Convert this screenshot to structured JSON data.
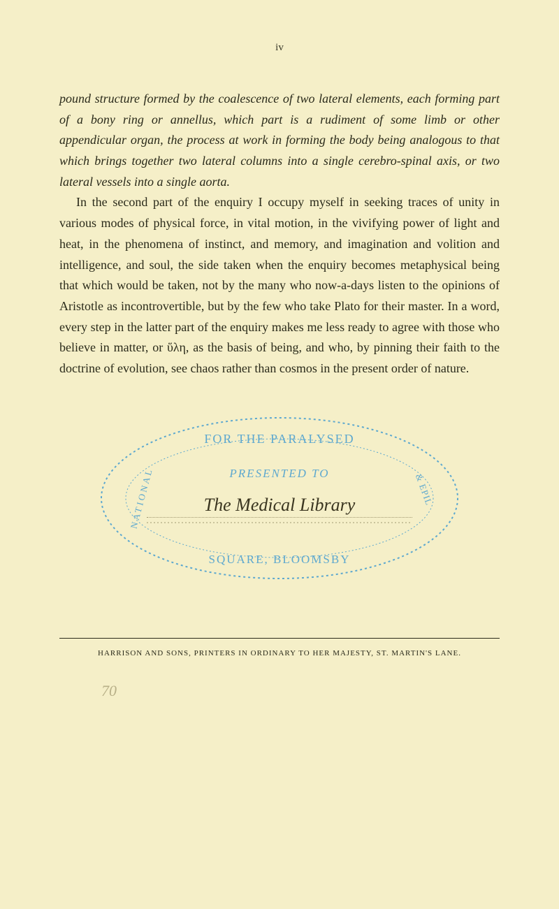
{
  "page": {
    "number": "iv",
    "paragraphs": [
      {
        "html": "<span class=\"italic\">pound structure formed by the coalescence of two lateral elements, each forming part of a bony ring or annellus, which part is a rudiment of some limb or other appendicular organ, the process at work in forming the body being analogous to that which brings together two lateral columns into a single cerebro-spinal axis, or two lateral vessels into a single aorta.</span>",
        "indent": false
      },
      {
        "html": "In the second part of the enquiry I occupy myself in seeking traces of unity in various modes of physical force, in vital motion, in the vivifying power of light and heat, in the phenomena of instinct, and memory, and imagination and volition and intelligence, and soul, the side taken when the enquiry becomes metaphysical being that which would be taken, not by the many who now-a-days listen to the opinions of Aristotle as incontrovertible, but by the few who take Plato for their master. In a word, every step in the latter part of the enquiry makes me less ready to agree with those who believe in matter, or ὕλη, as the basis of being, and who, by pinning their faith to the doctrine of evolution, see chaos rather than cosmos in the present order of nature.",
        "indent": true
      }
    ]
  },
  "stamp": {
    "top_arc": "FOR THE PARALYSED",
    "presented": "PRESENTED TO",
    "handwriting": "The Medical Library",
    "bottom_arc": "SQUARE, BLOOMSBY",
    "left_side": "NATIONAL",
    "right_side": "& EPIL",
    "oval_color": "#5da8cf",
    "dotted_color": "#a09870"
  },
  "footer": {
    "text": "HARRISON AND SONS, PRINTERS IN ORDINARY TO HER MAJESTY, ST. MARTIN'S LANE."
  },
  "bottom_mark": "70"
}
